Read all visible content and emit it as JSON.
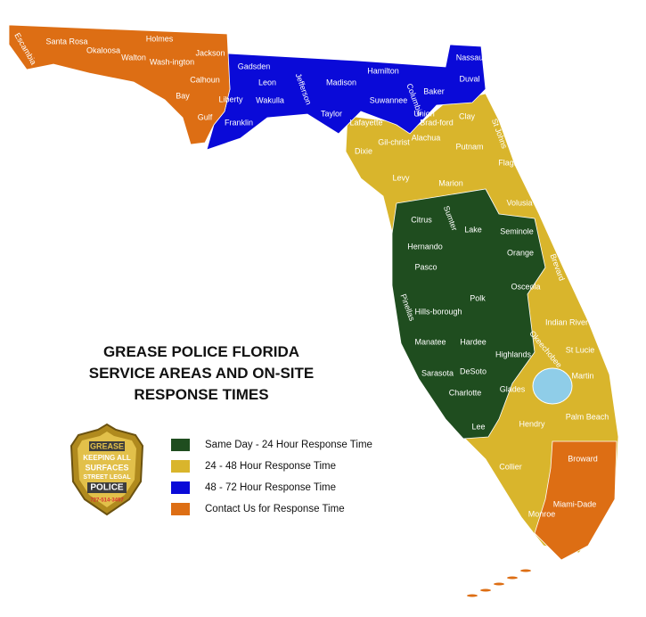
{
  "title": {
    "lines": [
      "GREASE POLICE FLORIDA",
      "SERVICE AREAS AND ON-SITE",
      "RESPONSE TIMES"
    ]
  },
  "legend": [
    {
      "label": "Same Day - 24 Hour Response Time",
      "color": "#1f4d1f"
    },
    {
      "label": "24 - 48 Hour Response Time",
      "color": "#d9b52c"
    },
    {
      "label": "48 - 72 Hour Response Time",
      "color": "#0a0ad8"
    },
    {
      "label": "Contact Us for Response Time",
      "color": "#dd6e14"
    }
  ],
  "lake_color": "#8fcde8",
  "counties": [
    "Escambia",
    "Santa Rosa",
    "Okaloosa",
    "Holmes",
    "Walton",
    "Wash-ington",
    "Jackson",
    "Calhoun",
    "Bay",
    "Gulf",
    "Gadsden",
    "Leon",
    "Liberty",
    "Wakulla",
    "Jefferson",
    "Madison",
    "Hamilton",
    "Suwannee",
    "Columbia",
    "Baker",
    "Nassau",
    "Duval",
    "Taylor",
    "Franklin",
    "Lafayette",
    "Union",
    "Brad-ford",
    "Clay",
    "St Johns",
    "Dixie",
    "Gil-christ",
    "Alachua",
    "Putnam",
    "Flagler",
    "Levy",
    "Marion",
    "Volusia",
    "Citrus",
    "Sumter",
    "Lake",
    "Seminole",
    "Hernando",
    "Orange",
    "Pasco",
    "Brevard",
    "Osceola",
    "Polk",
    "Pinellas",
    "Hills-borough",
    "Indian River",
    "Manatee",
    "Hardee",
    "Highlands",
    "St Lucie",
    "Okeechobee",
    "Sarasota",
    "DeSoto",
    "Martin",
    "Charlotte",
    "Glades",
    "Palm Beach",
    "Hendry",
    "Lee",
    "Collier",
    "Broward",
    "Miami-Dade",
    "Monroe"
  ],
  "badge": {
    "top": "GREASE",
    "line1": "KEEPING ALL",
    "line2": "SURFACES",
    "line3": "STREET LEGAL",
    "name": "POLICE",
    "phone": "727-514-3497"
  }
}
